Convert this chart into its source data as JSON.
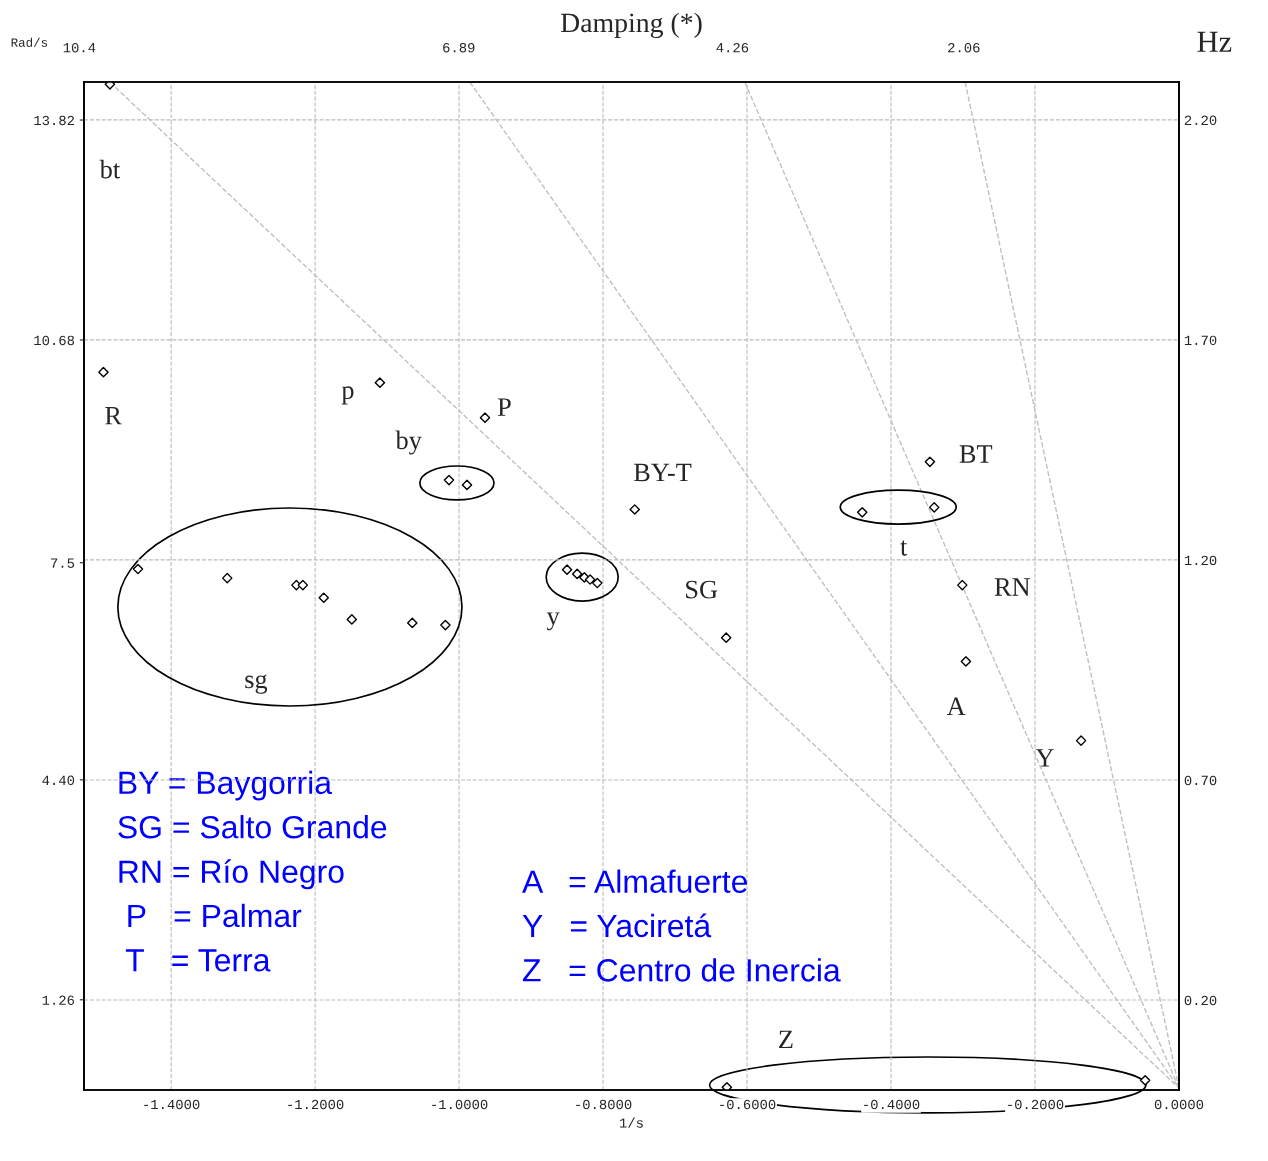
{
  "chart_data": {
    "type": "scatter",
    "title": "Damping (*)",
    "xlabel": "1/s",
    "ylabel": "Rad/s",
    "y2label": "Hz",
    "xlim": [
      -1.521,
      0
    ],
    "ylim": [
      -0.028,
      14.363
    ],
    "y2lim": [
      -0.0045,
      2.286
    ],
    "xticks": [
      {
        "value": -1.4,
        "label": "-1.4000"
      },
      {
        "value": -1.2,
        "label": "-1.2000"
      },
      {
        "value": -1.0,
        "label": "-1.0000"
      },
      {
        "value": -0.8,
        "label": "-0.8000"
      },
      {
        "value": -0.6,
        "label": "-0.6000"
      },
      {
        "value": -0.4,
        "label": "-0.4000"
      },
      {
        "value": -0.2,
        "label": "-0.2000"
      },
      {
        "value": 0,
        "label": "0.0000"
      }
    ],
    "yticks": [
      13.82,
      10.68,
      7.5,
      {
        "value": 4.4,
        "label": "4.40"
      },
      1.26
    ],
    "y2ticks": [
      {
        "value": 2.2,
        "label": "2.20"
      },
      {
        "value": 1.7,
        "label": "1.70"
      },
      {
        "value": 1.2,
        "label": "1.20"
      },
      {
        "value": 0.7,
        "label": "0.70"
      },
      {
        "value": 0.2,
        "label": "0.20"
      }
    ],
    "grid": true,
    "marker": "diamond",
    "series": [
      {
        "color": "#000000",
        "x": [
          -1.485,
          -1.494,
          -1.11,
          -0.964,
          -1.014,
          -0.989,
          -0.756,
          -0.346,
          -0.44,
          -0.34,
          -0.85,
          -0.836,
          -0.826,
          -0.818,
          -0.808,
          -1.446,
          -1.322,
          -1.226,
          -1.217,
          -1.188,
          -1.149,
          -1.065,
          -1.019,
          -0.629,
          -0.301,
          -0.296,
          -0.136,
          -0.628,
          -0.047
        ],
        "values": [
          14.33,
          10.22,
          10.07,
          9.57,
          8.68,
          8.61,
          8.26,
          8.94,
          8.22,
          8.29,
          7.4,
          7.34,
          7.29,
          7.26,
          7.21,
          7.41,
          7.28,
          7.18,
          7.18,
          7.0,
          6.69,
          6.64,
          6.61,
          6.43,
          7.18,
          6.09,
          4.96,
          0.01,
          0.11
        ]
      },
      {
        "type": "line",
        "color": "#c0c0c0",
        "line_style": "dashed",
        "marker": "none",
        "x": [
          -1.485,
          0
        ],
        "values": [
          14.36,
          0
        ]
      },
      {
        "type": "line",
        "color": "#c0c0c0",
        "line_style": "dashed",
        "marker": "none",
        "x": [
          -0.985,
          0
        ],
        "values": [
          14.36,
          0
        ]
      },
      {
        "type": "line",
        "color": "#c0c0c0",
        "line_style": "dashed",
        "marker": "none",
        "x": [
          -0.603,
          0
        ],
        "values": [
          14.36,
          0
        ]
      },
      {
        "type": "line",
        "color": "#c0c0c0",
        "line_style": "dashed",
        "marker": "none",
        "x": [
          -0.297,
          0
        ],
        "values": [
          14.36,
          0
        ]
      }
    ],
    "annotations": [
      {
        "text": "bt",
        "x": -1.485,
        "y": 14.33
      },
      {
        "text": "R",
        "x": -1.494,
        "y": 10.22
      },
      {
        "text": "p",
        "x": -1.11,
        "y": 10.07
      },
      {
        "text": "P",
        "x": -0.964,
        "y": 9.57
      },
      {
        "text": "by",
        "x": -1.014,
        "y": 8.68
      },
      {
        "text": "BY-T",
        "x": -0.756,
        "y": 8.26
      },
      {
        "text": "BT",
        "x": -0.346,
        "y": 8.94
      },
      {
        "text": "t",
        "x": -0.34,
        "y": 8.29
      },
      {
        "text": "y",
        "x": -0.85,
        "y": 7.4
      },
      {
        "text": "SG",
        "x": -0.629,
        "y": 6.43
      },
      {
        "text": "RN",
        "x": -0.301,
        "y": 7.18
      },
      {
        "text": "A",
        "x": -0.296,
        "y": 6.09
      },
      {
        "text": "Y",
        "x": -0.136,
        "y": 4.96
      },
      {
        "text": "10.4",
        "x": -1.485,
        "y": 14.363
      },
      {
        "text": "6.89",
        "x": -0.985,
        "y": 14.363
      },
      {
        "text": "4.26",
        "x": -0.603,
        "y": 14.363
      },
      {
        "text": "2.06",
        "x": -0.297,
        "y": 14.363
      },
      "sg",
      "Z",
      "BY = Baygorria",
      "SG = Salto Grande",
      "RN = Río Negro",
      " P   = Palmar",
      " T   = Terra",
      "A   = Almafuerte",
      "Y   = Yaciretá",
      "Z   = Centro de Inercia"
    ]
  }
}
